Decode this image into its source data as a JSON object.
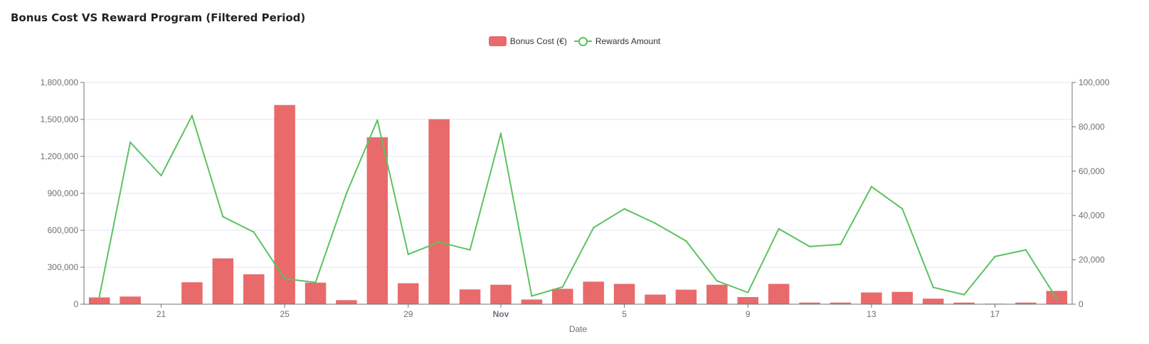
{
  "chart_data": {
    "type": "bar",
    "title": "Bonus Cost VS Reward Program (Filtered Period)",
    "xlabel": "Date",
    "x_tick_labels": [
      {
        "index": 2,
        "label": "21",
        "bold": false
      },
      {
        "index": 6,
        "label": "25",
        "bold": false
      },
      {
        "index": 10,
        "label": "29",
        "bold": false
      },
      {
        "index": 13,
        "label": "Nov",
        "bold": true
      },
      {
        "index": 17,
        "label": "5",
        "bold": false
      },
      {
        "index": 21,
        "label": "9",
        "bold": false
      },
      {
        "index": 25,
        "label": "13",
        "bold": false
      },
      {
        "index": 29,
        "label": "17",
        "bold": false
      }
    ],
    "categories_count": 32,
    "y_left": {
      "min": 0,
      "max": 1800000,
      "ticks": [
        0,
        300000,
        600000,
        900000,
        1200000,
        1500000,
        1800000
      ],
      "tick_labels": [
        "0",
        "300,000",
        "600,000",
        "900,000",
        "1,200,000",
        "1,500,000",
        "1,800,000"
      ]
    },
    "y_right": {
      "min": 0,
      "max": 100000,
      "ticks": [
        0,
        20000,
        40000,
        60000,
        80000,
        100000
      ],
      "tick_labels": [
        "0",
        "20,000",
        "40,000",
        "60,000",
        "80,000",
        "100,000"
      ]
    },
    "grid": true,
    "legend_position": "top-center",
    "series": [
      {
        "name": "Bonus Cost (€)",
        "type": "bar",
        "axis": "left",
        "color": "#e96a6b",
        "values": [
          55000,
          62000,
          0,
          178000,
          372000,
          243000,
          1617000,
          175000,
          33000,
          1355000,
          170000,
          1502000,
          120000,
          158000,
          38000,
          125000,
          183000,
          165000,
          78000,
          118000,
          158000,
          58000,
          165000,
          13000,
          13000,
          95000,
          100000,
          45000,
          13000,
          4000,
          13000,
          108000
        ]
      },
      {
        "name": "Rewards Amount",
        "type": "line",
        "axis": "right",
        "color": "#5bc35e",
        "values": [
          3500,
          73000,
          58000,
          85000,
          39500,
          32500,
          11500,
          9800,
          50000,
          83000,
          22500,
          28000,
          24500,
          77000,
          3700,
          7800,
          34500,
          43000,
          36500,
          28500,
          10500,
          5300,
          34000,
          26000,
          27000,
          53000,
          43000,
          7600,
          4300,
          21500,
          24500,
          2500
        ]
      }
    ]
  }
}
